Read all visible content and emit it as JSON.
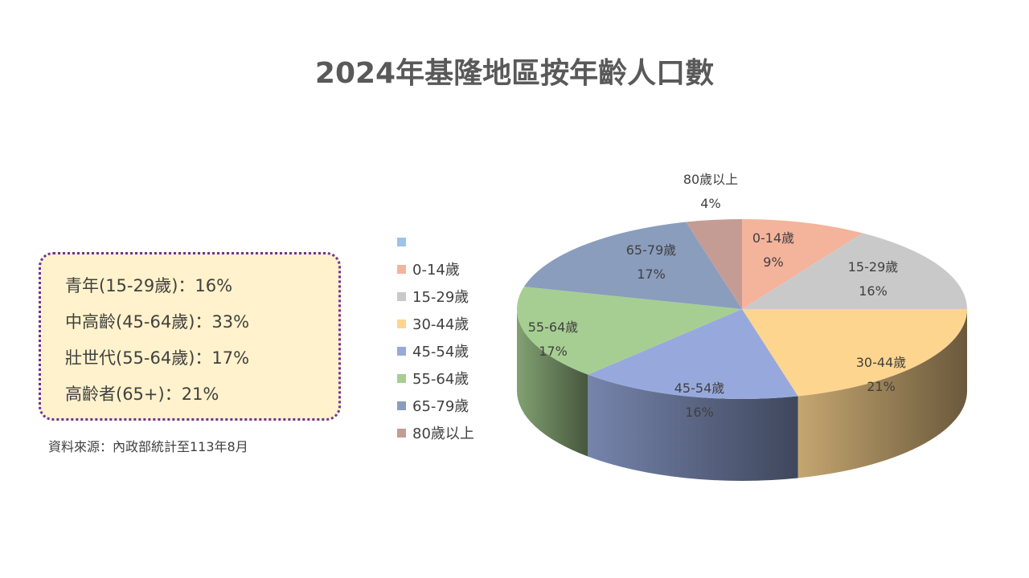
{
  "title": "2024年基隆地區按年齡人口數",
  "summary": [
    {
      "label": "青年(15-29歲)：16%"
    },
    {
      "label": "中高齡(45-64歲)：33%"
    },
    {
      "label": "壯世代(55-64歲)：17%"
    },
    {
      "label": "高齡者(65+)：21%"
    }
  ],
  "source": "資料來源：內政部統計至113年8月",
  "chart_data": {
    "type": "pie",
    "categories": [
      "0-14歲",
      "15-29歲",
      "30-44歲",
      "45-54歲",
      "55-64歲",
      "65-79歲",
      "80歲以上"
    ],
    "values": [
      9,
      16,
      21,
      16,
      17,
      17,
      4
    ],
    "value_labels": [
      "9%",
      "16%",
      "21%",
      "16%",
      "17%",
      "17%",
      "4%"
    ],
    "colors": [
      "#f4b39b",
      "#c9c9c9",
      "#fdd58f",
      "#97a9dc",
      "#a7ce92",
      "#8a9dbd",
      "#c59c94"
    ],
    "legend_blank_color": "#9dc3e6",
    "legend_placement": "left",
    "three_d": true
  }
}
